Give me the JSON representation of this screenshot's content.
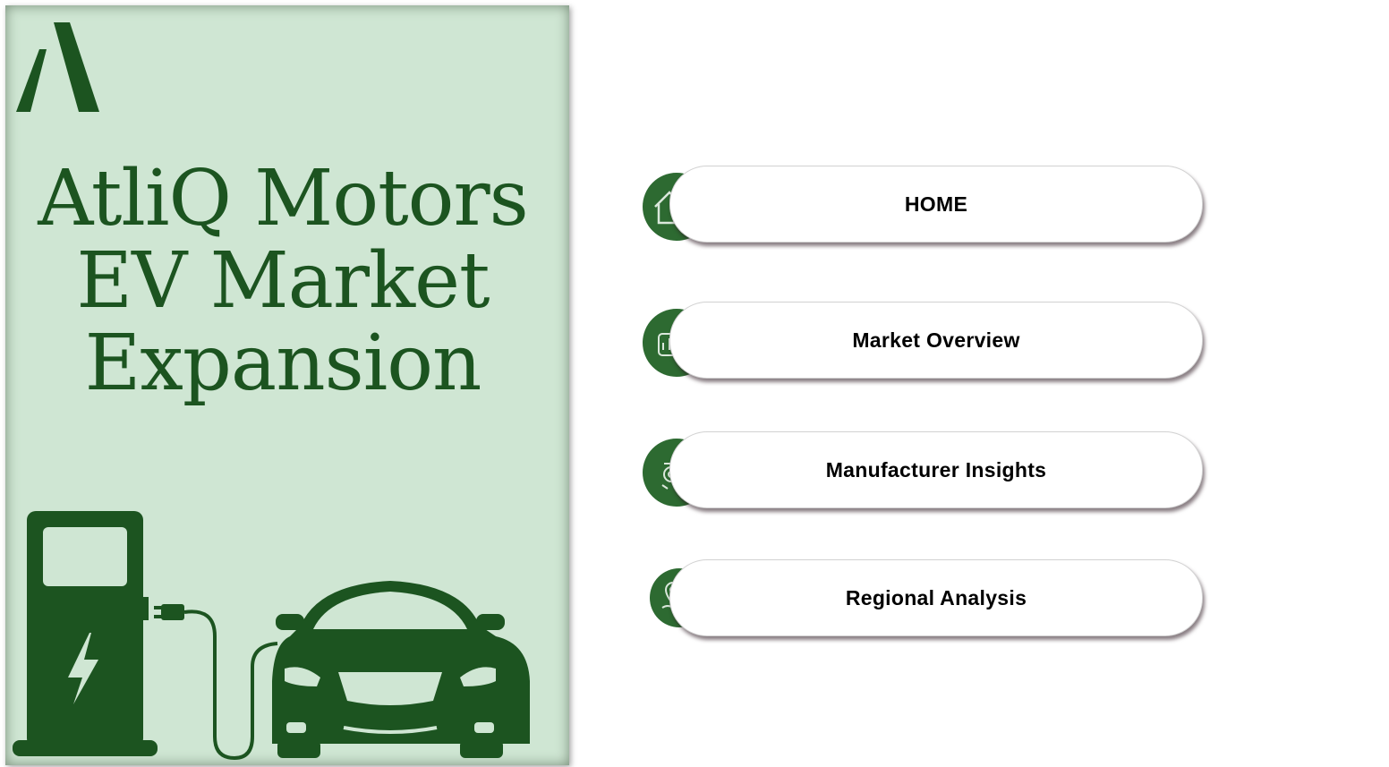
{
  "brand": {
    "title_lines": [
      "AtliQ Motors",
      "EV Market",
      "Expansion"
    ],
    "primary_color": "#1c5420",
    "panel_color": "#cfe6d3",
    "logo_icon": "atliq-logo-icon",
    "illustration_icon": "ev-charging-car-icon"
  },
  "navigation": {
    "items": [
      {
        "label": "HOME",
        "icon": "home-icon"
      },
      {
        "label": "Market Overview",
        "icon": "chart-icon"
      },
      {
        "label": "Manufacturer Insights",
        "icon": "car-gear-icon"
      },
      {
        "label": "Regional Analysis",
        "icon": "map-pin-icon"
      }
    ]
  }
}
